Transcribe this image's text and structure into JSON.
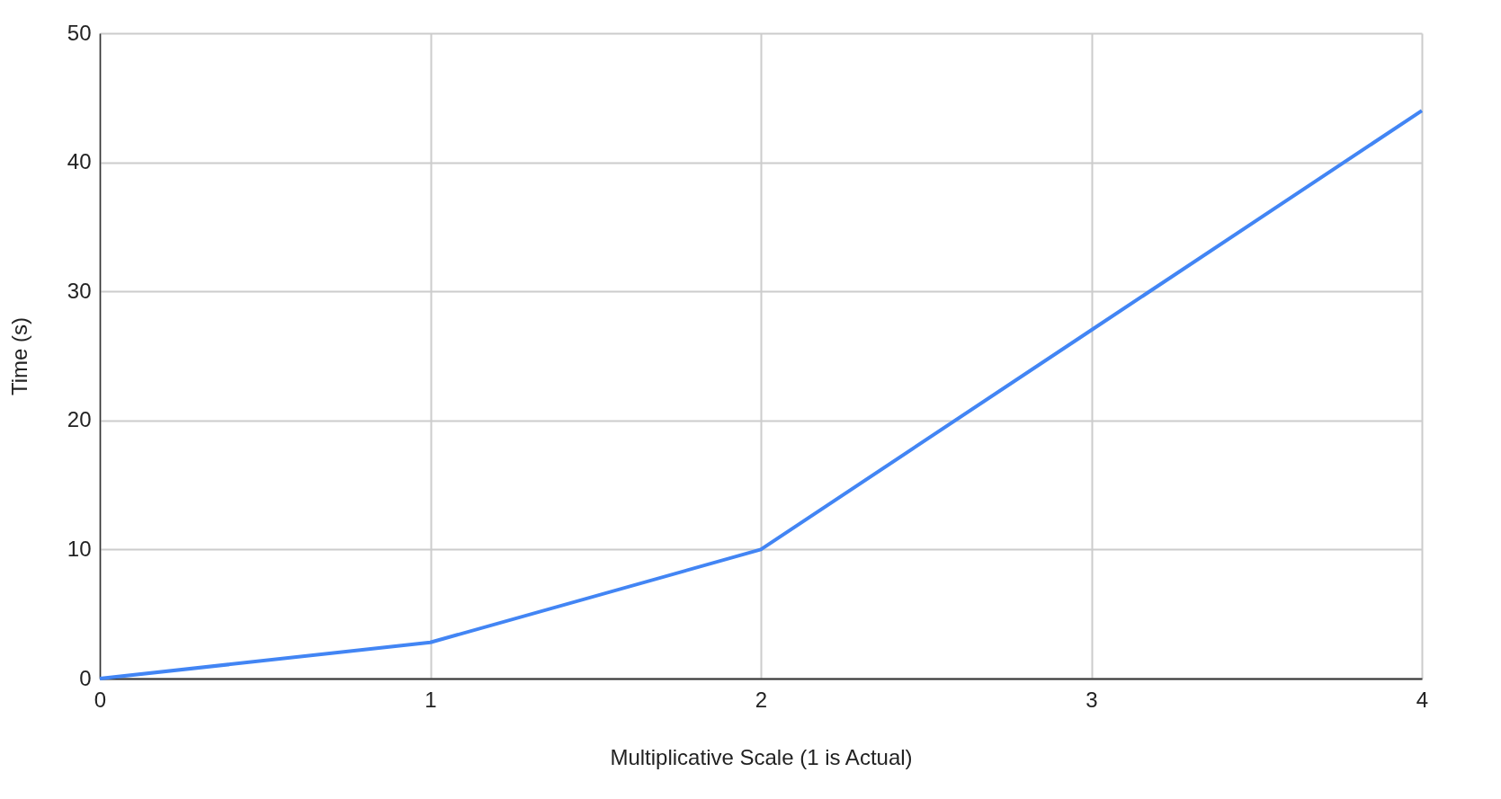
{
  "chart_data": {
    "type": "line",
    "xlabel": "Multiplicative Scale (1 is Actual)",
    "ylabel": "Time (s)",
    "x": [
      0,
      1,
      2,
      3,
      4
    ],
    "series": [
      {
        "color": "#4285f4",
        "values": [
          0,
          2.8,
          10,
          27,
          44
        ]
      }
    ],
    "xlim": [
      0,
      4
    ],
    "xticks": [
      0,
      1,
      2,
      3,
      4
    ],
    "ylim": [
      0,
      50
    ],
    "yticks": [
      0,
      10,
      20,
      30,
      40,
      50
    ],
    "grid": true,
    "marker": "none",
    "line_style": "solid"
  }
}
